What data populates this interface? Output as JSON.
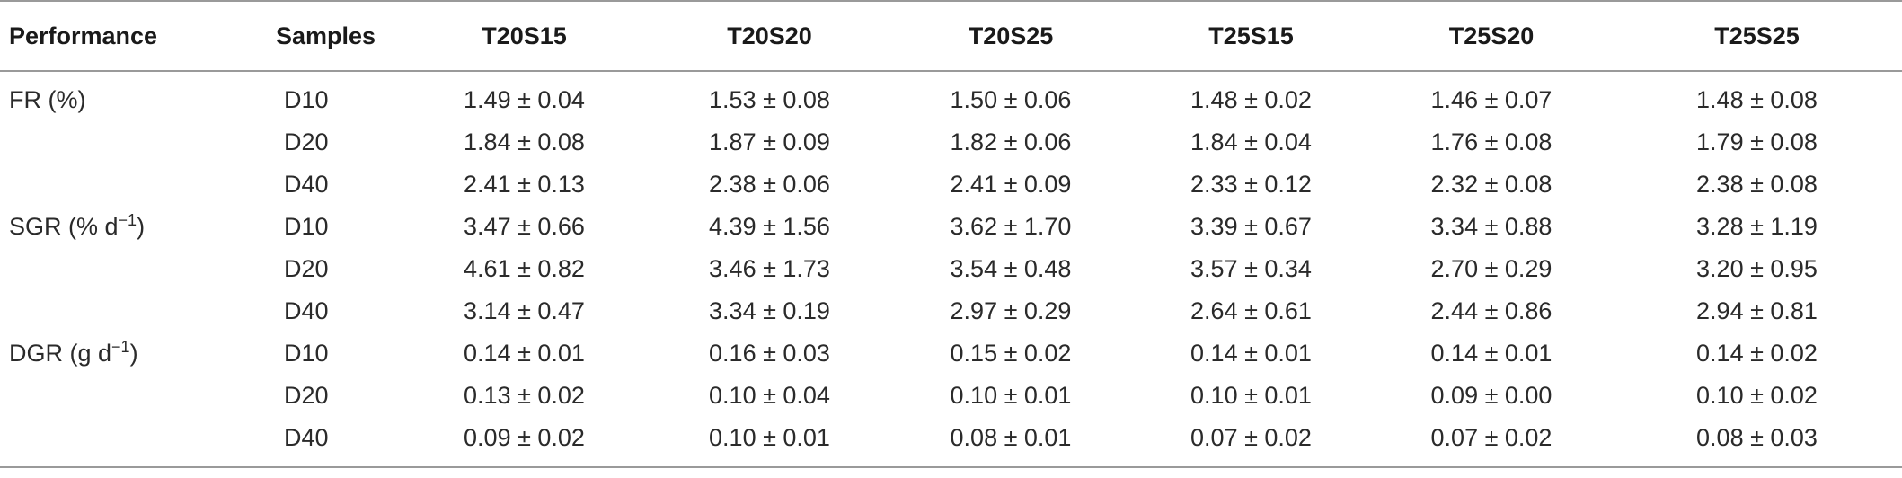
{
  "table": {
    "headers": [
      "Performance",
      "Samples",
      "T20S15",
      "T20S20",
      "T20S25",
      "T25S15",
      "T25S20",
      "T25S25"
    ],
    "rows": [
      {
        "performance": "FR (%)",
        "perf_sup": "",
        "perf_suffix": "",
        "sample": "D10",
        "values": [
          "1.49 ± 0.04",
          "1.53 ± 0.08",
          "1.50 ± 0.06",
          "1.48 ± 0.02",
          "1.46 ± 0.07",
          "1.48 ± 0.08"
        ]
      },
      {
        "performance": "",
        "perf_sup": "",
        "perf_suffix": "",
        "sample": "D20",
        "values": [
          "1.84 ± 0.08",
          "1.87 ± 0.09",
          "1.82 ± 0.06",
          "1.84 ± 0.04",
          "1.76 ± 0.08",
          "1.79 ± 0.08"
        ]
      },
      {
        "performance": "",
        "perf_sup": "",
        "perf_suffix": "",
        "sample": "D40",
        "values": [
          "2.41 ± 0.13",
          "2.38 ± 0.06",
          "2.41 ± 0.09",
          "2.33 ± 0.12",
          "2.32 ± 0.08",
          "2.38 ± 0.08"
        ]
      },
      {
        "performance": "SGR (% d",
        "perf_sup": "−1",
        "perf_suffix": ")",
        "sample": "D10",
        "values": [
          "3.47 ± 0.66",
          "4.39 ± 1.56",
          "3.62 ± 1.70",
          "3.39 ± 0.67",
          "3.34 ± 0.88",
          "3.28 ± 1.19"
        ]
      },
      {
        "performance": "",
        "perf_sup": "",
        "perf_suffix": "",
        "sample": "D20",
        "values": [
          "4.61 ± 0.82",
          "3.46 ± 1.73",
          "3.54 ± 0.48",
          "3.57 ± 0.34",
          "2.70 ± 0.29",
          "3.20 ± 0.95"
        ]
      },
      {
        "performance": "",
        "perf_sup": "",
        "perf_suffix": "",
        "sample": "D40",
        "values": [
          "3.14 ± 0.47",
          "3.34 ± 0.19",
          "2.97 ± 0.29",
          "2.64 ± 0.61",
          "2.44 ± 0.86",
          "2.94 ± 0.81"
        ]
      },
      {
        "performance": "DGR (g d",
        "perf_sup": "−1",
        "perf_suffix": ")",
        "sample": "D10",
        "values": [
          "0.14 ± 0.01",
          "0.16 ± 0.03",
          "0.15 ± 0.02",
          "0.14 ± 0.01",
          "0.14 ± 0.01",
          "0.14 ± 0.02"
        ]
      },
      {
        "performance": "",
        "perf_sup": "",
        "perf_suffix": "",
        "sample": "D20",
        "values": [
          "0.13 ± 0.02",
          "0.10 ± 0.04",
          "0.10 ± 0.01",
          "0.10 ± 0.01",
          "0.09 ± 0.00",
          "0.10 ± 0.02"
        ]
      },
      {
        "performance": "",
        "perf_sup": "",
        "perf_suffix": "",
        "sample": "D40",
        "values": [
          "0.09 ± 0.02",
          "0.10 ± 0.01",
          "0.08 ± 0.01",
          "0.07 ± 0.02",
          "0.07 ± 0.02",
          "0.08 ± 0.03"
        ]
      }
    ]
  }
}
